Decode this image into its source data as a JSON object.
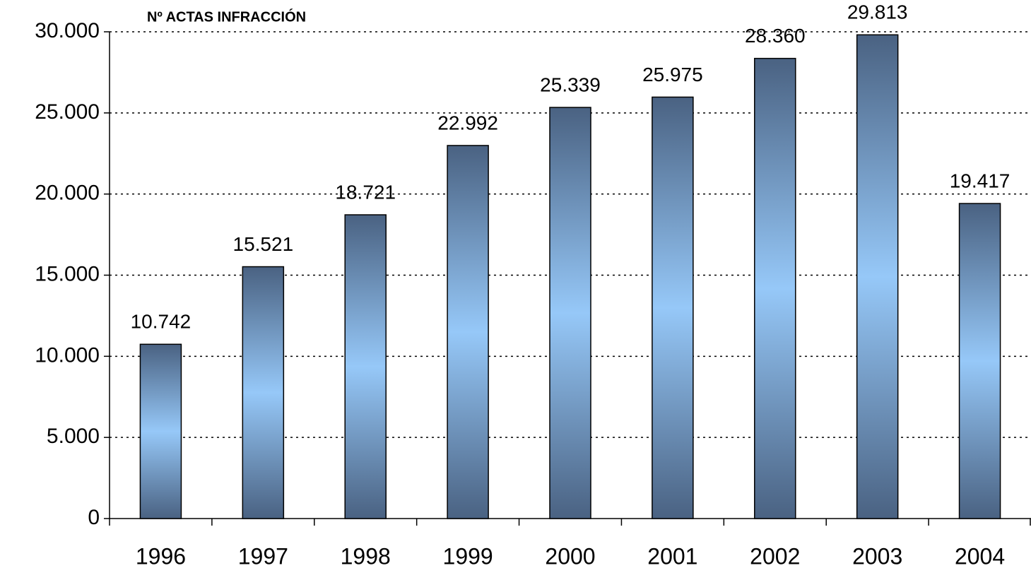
{
  "chart_data": {
    "type": "bar",
    "title": "Nº ACTAS INFRACCIÓN",
    "categories": [
      "1996",
      "1997",
      "1998",
      "1999",
      "2000",
      "2001",
      "2002",
      "2003",
      "2004"
    ],
    "values": [
      10742,
      15521,
      18721,
      22992,
      25339,
      25975,
      28360,
      29813,
      19417
    ],
    "value_labels": [
      "10.742",
      "15.521",
      "18.721",
      "22.992",
      "25.339",
      "25.975",
      "28.360",
      "29.813",
      "19.417"
    ],
    "color": "#4a6282",
    "ylim": [
      0,
      30000
    ],
    "yticks": [
      0,
      {
        "value": 5000,
        "label": "5.000"
      },
      {
        "value": 10000,
        "label": "10.000"
      },
      {
        "value": 15000,
        "label": "15.000"
      },
      {
        "value": 20000,
        "label": "20.000"
      },
      {
        "value": 25000,
        "label": "25.000"
      },
      {
        "value": 30000,
        "label": "30.000"
      }
    ],
    "grid": true
  }
}
